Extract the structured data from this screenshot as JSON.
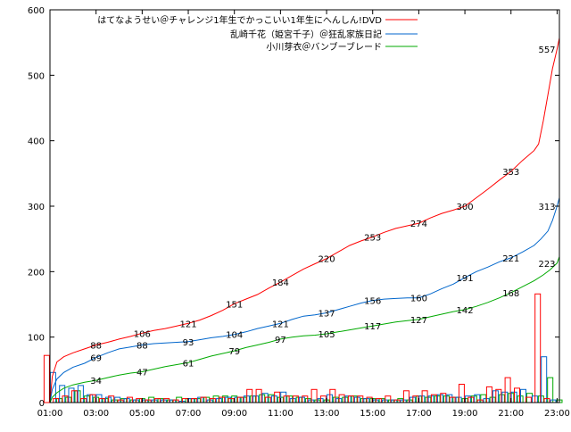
{
  "chart_data": {
    "type": "line",
    "x_ticks": [
      "01:00",
      "03:00",
      "05:00",
      "07:00",
      "09:00",
      "11:00",
      "13:00",
      "15:00",
      "17:00",
      "19:00",
      "21:00",
      "23:00"
    ],
    "xlim": [
      1,
      23.1
    ],
    "ylim": [
      0,
      600
    ],
    "y_ticks": [
      0,
      100,
      200,
      300,
      400,
      500,
      600
    ],
    "grid": false,
    "legend_position": "top-right",
    "series": [
      {
        "name": "はてなようせい＠チャレンジ1年生でかっこいい1年生にへんしん!DVD",
        "color": "#ff0000",
        "points": [
          [
            1.0,
            0
          ],
          [
            1.1,
            40
          ],
          [
            1.3,
            62
          ],
          [
            1.6,
            70
          ],
          [
            2.0,
            76
          ],
          [
            2.5,
            82
          ],
          [
            3.0,
            88
          ],
          [
            3.5,
            92
          ],
          [
            4.0,
            97
          ],
          [
            4.5,
            101
          ],
          [
            5.0,
            106
          ],
          [
            5.5,
            110
          ],
          [
            6.0,
            113
          ],
          [
            6.5,
            117
          ],
          [
            7.0,
            121
          ],
          [
            7.5,
            126
          ],
          [
            8.0,
            133
          ],
          [
            8.5,
            141
          ],
          [
            9.0,
            151
          ],
          [
            9.5,
            158
          ],
          [
            10.0,
            165
          ],
          [
            10.5,
            175
          ],
          [
            11.0,
            184
          ],
          [
            11.5,
            194
          ],
          [
            12.0,
            204
          ],
          [
            12.5,
            212
          ],
          [
            13.0,
            220
          ],
          [
            13.5,
            230
          ],
          [
            14.0,
            240
          ],
          [
            14.5,
            247
          ],
          [
            15.0,
            253
          ],
          [
            15.5,
            260
          ],
          [
            16.0,
            266
          ],
          [
            16.5,
            270
          ],
          [
            17.0,
            274
          ],
          [
            17.5,
            282
          ],
          [
            18.0,
            289
          ],
          [
            18.5,
            294
          ],
          [
            19.0,
            300
          ],
          [
            19.5,
            313
          ],
          [
            20.0,
            326
          ],
          [
            20.5,
            340
          ],
          [
            21.0,
            353
          ],
          [
            21.5,
            370
          ],
          [
            22.0,
            385
          ],
          [
            22.2,
            395
          ],
          [
            22.4,
            430
          ],
          [
            22.6,
            470
          ],
          [
            22.8,
            510
          ],
          [
            23.0,
            540
          ],
          [
            23.1,
            557
          ]
        ],
        "labels": [
          [
            3,
            "88"
          ],
          [
            5,
            "106"
          ],
          [
            7,
            "121"
          ],
          [
            9,
            "151"
          ],
          [
            11,
            "184"
          ],
          [
            13,
            "220"
          ],
          [
            15,
            "253"
          ],
          [
            17,
            "274"
          ],
          [
            19,
            "300"
          ],
          [
            21,
            "353"
          ],
          [
            23,
            "557"
          ]
        ]
      },
      {
        "name": "乱崎千花（姫宮千子）＠狂乱家族日記",
        "color": "#0066cc",
        "points": [
          [
            1.0,
            0
          ],
          [
            1.1,
            20
          ],
          [
            1.3,
            36
          ],
          [
            1.6,
            46
          ],
          [
            2.0,
            54
          ],
          [
            2.5,
            60
          ],
          [
            3.0,
            69
          ],
          [
            3.5,
            76
          ],
          [
            4.0,
            82
          ],
          [
            4.5,
            85
          ],
          [
            5.0,
            88
          ],
          [
            5.5,
            90
          ],
          [
            6.0,
            91
          ],
          [
            6.5,
            92
          ],
          [
            7.0,
            93
          ],
          [
            7.5,
            96
          ],
          [
            8.0,
            99
          ],
          [
            8.5,
            101
          ],
          [
            9.0,
            104
          ],
          [
            9.5,
            108
          ],
          [
            10.0,
            113
          ],
          [
            10.5,
            117
          ],
          [
            11.0,
            121
          ],
          [
            11.5,
            127
          ],
          [
            12.0,
            132
          ],
          [
            12.5,
            134
          ],
          [
            13.0,
            137
          ],
          [
            13.5,
            142
          ],
          [
            14.0,
            147
          ],
          [
            14.5,
            152
          ],
          [
            15.0,
            156
          ],
          [
            15.5,
            158
          ],
          [
            16.0,
            159
          ],
          [
            16.5,
            160
          ],
          [
            17.0,
            160
          ],
          [
            17.5,
            166
          ],
          [
            18.0,
            174
          ],
          [
            18.5,
            181
          ],
          [
            19.0,
            191
          ],
          [
            19.5,
            200
          ],
          [
            20.0,
            207
          ],
          [
            20.5,
            215
          ],
          [
            21.0,
            221
          ],
          [
            21.5,
            230
          ],
          [
            22.0,
            240
          ],
          [
            22.3,
            250
          ],
          [
            22.6,
            262
          ],
          [
            22.8,
            278
          ],
          [
            23.0,
            300
          ],
          [
            23.1,
            313
          ]
        ],
        "labels": [
          [
            3,
            "69"
          ],
          [
            5,
            "88"
          ],
          [
            7,
            "93"
          ],
          [
            9,
            "104"
          ],
          [
            11,
            "121"
          ],
          [
            13,
            "137"
          ],
          [
            15,
            "156"
          ],
          [
            17,
            "160"
          ],
          [
            19,
            "191"
          ],
          [
            21,
            "221"
          ],
          [
            23,
            "313"
          ]
        ]
      },
      {
        "name": "小川芽衣＠バンブーブレード",
        "color": "#00aa00",
        "points": [
          [
            1.0,
            0
          ],
          [
            1.1,
            8
          ],
          [
            1.3,
            15
          ],
          [
            1.6,
            22
          ],
          [
            2.0,
            27
          ],
          [
            2.5,
            31
          ],
          [
            3.0,
            34
          ],
          [
            3.5,
            38
          ],
          [
            4.0,
            42
          ],
          [
            4.5,
            45
          ],
          [
            5.0,
            47
          ],
          [
            5.5,
            51
          ],
          [
            6.0,
            55
          ],
          [
            6.5,
            58
          ],
          [
            7.0,
            61
          ],
          [
            7.5,
            66
          ],
          [
            8.0,
            71
          ],
          [
            8.5,
            75
          ],
          [
            9.0,
            79
          ],
          [
            9.5,
            84
          ],
          [
            10.0,
            88
          ],
          [
            10.5,
            92
          ],
          [
            11.0,
            97
          ],
          [
            11.5,
            100
          ],
          [
            12.0,
            102
          ],
          [
            12.5,
            103
          ],
          [
            13.0,
            105
          ],
          [
            13.5,
            108
          ],
          [
            14.0,
            111
          ],
          [
            14.5,
            114
          ],
          [
            15.0,
            117
          ],
          [
            15.5,
            120
          ],
          [
            16.0,
            123
          ],
          [
            16.5,
            125
          ],
          [
            17.0,
            127
          ],
          [
            17.5,
            131
          ],
          [
            18.0,
            135
          ],
          [
            18.5,
            139
          ],
          [
            19.0,
            142
          ],
          [
            19.5,
            147
          ],
          [
            20.0,
            153
          ],
          [
            20.5,
            160
          ],
          [
            21.0,
            168
          ],
          [
            21.5,
            177
          ],
          [
            22.0,
            186
          ],
          [
            22.4,
            195
          ],
          [
            22.7,
            203
          ],
          [
            23.0,
            213
          ],
          [
            23.1,
            223
          ]
        ],
        "labels": [
          [
            3,
            "34"
          ],
          [
            5,
            "47"
          ],
          [
            7,
            "61"
          ],
          [
            9,
            "79"
          ],
          [
            11,
            "97"
          ],
          [
            13,
            "105"
          ],
          [
            15,
            "117"
          ],
          [
            17,
            "127"
          ],
          [
            19,
            "142"
          ],
          [
            21,
            "168"
          ],
          [
            23,
            "223"
          ]
        ]
      }
    ],
    "bars_series_order": [
      "red",
      "blue",
      "green"
    ],
    "bars": [
      [
        1.15,
        72,
        46,
        6
      ],
      [
        1.55,
        6,
        26,
        8
      ],
      [
        1.95,
        10,
        22,
        18
      ],
      [
        2.35,
        18,
        26,
        10
      ],
      [
        2.75,
        6,
        12,
        8
      ],
      [
        3.15,
        12,
        12,
        6
      ],
      [
        3.55,
        6,
        8,
        4
      ],
      [
        3.95,
        10,
        8,
        6
      ],
      [
        4.35,
        4,
        6,
        4
      ],
      [
        4.75,
        8,
        4,
        6
      ],
      [
        5.15,
        6,
        4,
        8
      ],
      [
        5.55,
        4,
        4,
        6
      ],
      [
        5.95,
        6,
        4,
        4
      ],
      [
        6.35,
        6,
        4,
        8
      ],
      [
        6.75,
        4,
        2,
        6
      ],
      [
        7.15,
        6,
        6,
        6
      ],
      [
        7.55,
        6,
        8,
        8
      ],
      [
        7.95,
        8,
        4,
        10
      ],
      [
        8.35,
        6,
        6,
        10
      ],
      [
        8.75,
        8,
        8,
        10
      ],
      [
        9.15,
        6,
        8,
        8
      ],
      [
        9.55,
        8,
        10,
        10
      ],
      [
        9.95,
        20,
        10,
        12
      ],
      [
        10.35,
        20,
        14,
        12
      ],
      [
        10.75,
        8,
        10,
        8
      ],
      [
        11.15,
        16,
        16,
        10
      ],
      [
        11.55,
        10,
        6,
        8
      ],
      [
        11.95,
        10,
        8,
        6
      ],
      [
        12.35,
        10,
        4,
        4
      ],
      [
        12.75,
        20,
        6,
        4
      ],
      [
        13.15,
        10,
        12,
        8
      ],
      [
        13.55,
        20,
        6,
        8
      ],
      [
        13.95,
        12,
        10,
        10
      ],
      [
        14.35,
        10,
        8,
        6
      ],
      [
        14.75,
        10,
        6,
        6
      ],
      [
        15.15,
        8,
        4,
        6
      ],
      [
        15.55,
        6,
        4,
        4
      ],
      [
        15.95,
        10,
        4,
        6
      ],
      [
        16.35,
        4,
        4,
        4
      ],
      [
        16.75,
        18,
        8,
        10
      ],
      [
        17.15,
        10,
        10,
        8
      ],
      [
        17.55,
        18,
        10,
        10
      ],
      [
        17.95,
        12,
        12,
        10
      ],
      [
        18.35,
        14,
        12,
        8
      ],
      [
        18.75,
        8,
        8,
        6
      ],
      [
        19.15,
        28,
        10,
        10
      ],
      [
        19.55,
        8,
        12,
        12
      ],
      [
        19.95,
        4,
        6,
        8
      ],
      [
        20.35,
        24,
        18,
        12
      ],
      [
        20.75,
        20,
        16,
        14
      ],
      [
        21.15,
        38,
        16,
        10
      ],
      [
        21.55,
        22,
        20,
        14
      ],
      [
        22.05,
        8,
        10,
        10
      ],
      [
        22.45,
        166,
        70,
        38
      ],
      [
        22.85,
        6,
        4,
        4
      ]
    ]
  }
}
